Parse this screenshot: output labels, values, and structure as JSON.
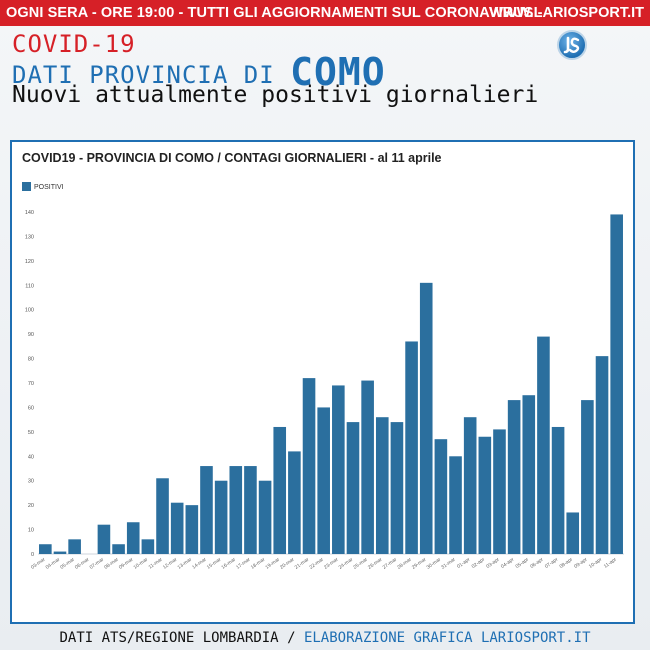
{
  "banner": {
    "message": "OGNI SERA - ORE 19:00 - TUTTI GLI AGGIORNAMENTI SUL CORONAVIRUS -",
    "site": "WWW.LARIOSPORT.IT"
  },
  "header": {
    "line1": "COVID-19",
    "line2_prefix": "DATI PROVINCIA DI",
    "line2_city": "COMO",
    "line3": "Nuovi attualmente positivi giornalieri"
  },
  "colors": {
    "accent_red": "#d62027",
    "accent_blue": "#1f6fb3",
    "bar": "#2b6f9e"
  },
  "footer": {
    "source": "DATI ATS/REGIONE LOMBARDIA",
    "separator": "/",
    "credit": "ELABORAZIONE GRAFICA LARIOSPORT.IT"
  },
  "chart_data": {
    "type": "bar",
    "title": "COVID19 - PROVINCIA DI COMO / CONTAGI GIORNALIERI - al 11 aprile",
    "legend_position": "top-left",
    "grid": false,
    "ylim": [
      0,
      140
    ],
    "yticks": [
      0,
      10,
      20,
      30,
      40,
      50,
      60,
      70,
      80,
      90,
      100,
      110,
      120,
      130,
      140
    ],
    "categories": [
      "03-mar",
      "04-mar",
      "05-mar",
      "06-mar",
      "07-mar",
      "08-mar",
      "09-mar",
      "10-mar",
      "11-mar",
      "12-mar",
      "13-mar",
      "14-mar",
      "15-mar",
      "16-mar",
      "17-mar",
      "18-mar",
      "19-mar",
      "20-mar",
      "21-mar",
      "22-mar",
      "23-mar",
      "24-mar",
      "25-mar",
      "26-mar",
      "27-mar",
      "28-mar",
      "29-mar",
      "30-mar",
      "31-mar",
      "01-apr",
      "02-apr",
      "03-apr",
      "04-apr",
      "05-apr",
      "06-apr",
      "07-apr",
      "08-apr",
      "09-apr",
      "10-apr",
      "11-apr"
    ],
    "series": [
      {
        "name": "POSITIVI",
        "values": [
          4,
          1,
          6,
          0,
          12,
          4,
          13,
          6,
          31,
          21,
          20,
          36,
          30,
          36,
          36,
          30,
          52,
          42,
          72,
          60,
          69,
          54,
          71,
          56,
          54,
          87,
          111,
          47,
          40,
          56,
          48,
          51,
          63,
          65,
          89,
          52,
          17,
          63,
          81,
          139
        ]
      }
    ]
  }
}
